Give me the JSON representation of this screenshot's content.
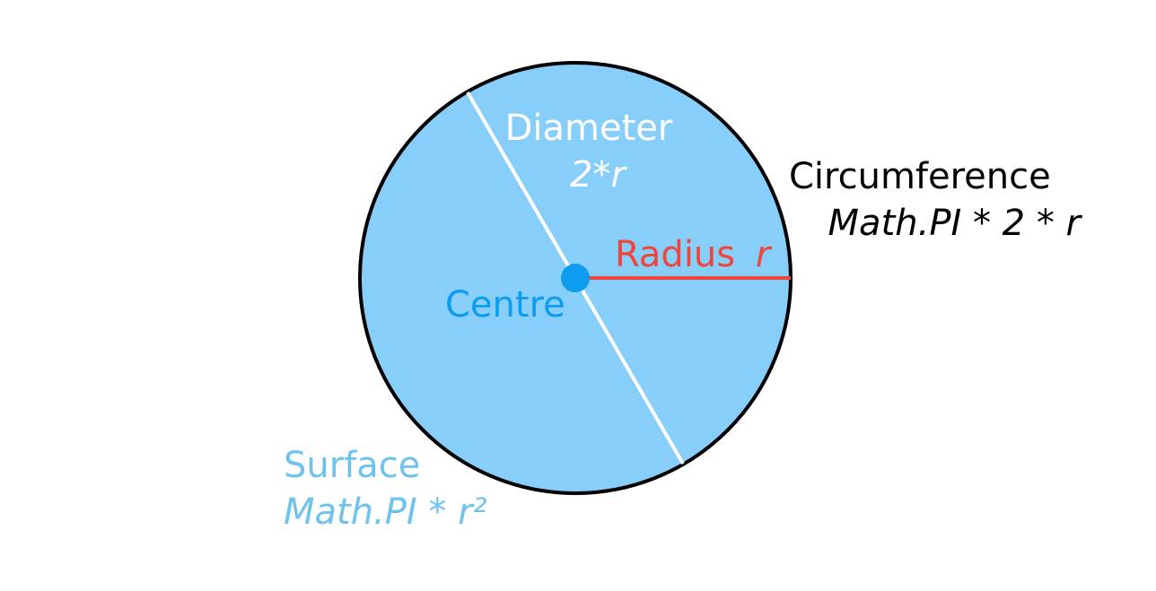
{
  "labels": {
    "diameter": {
      "name": "Diameter",
      "formula": "2*r",
      "color": "#ffffff"
    },
    "radius": {
      "name": "Radius",
      "variable": "r",
      "color": "#f0453a"
    },
    "centre": {
      "name": "Centre",
      "color": "#0e9cee"
    },
    "circumference": {
      "name": "Circumference",
      "formula": "Math.PI * 2 * r",
      "color": "#000000"
    },
    "surface": {
      "name": "Surface",
      "formula": "Math.PI * r²",
      "color": "#6ec3ee"
    }
  },
  "colors": {
    "circle_fill": "#87cefa",
    "circle_stroke": "#000000",
    "diameter_line": "#ffffff",
    "radius_line": "#f0453a",
    "centre_dot": "#0e9cee"
  }
}
